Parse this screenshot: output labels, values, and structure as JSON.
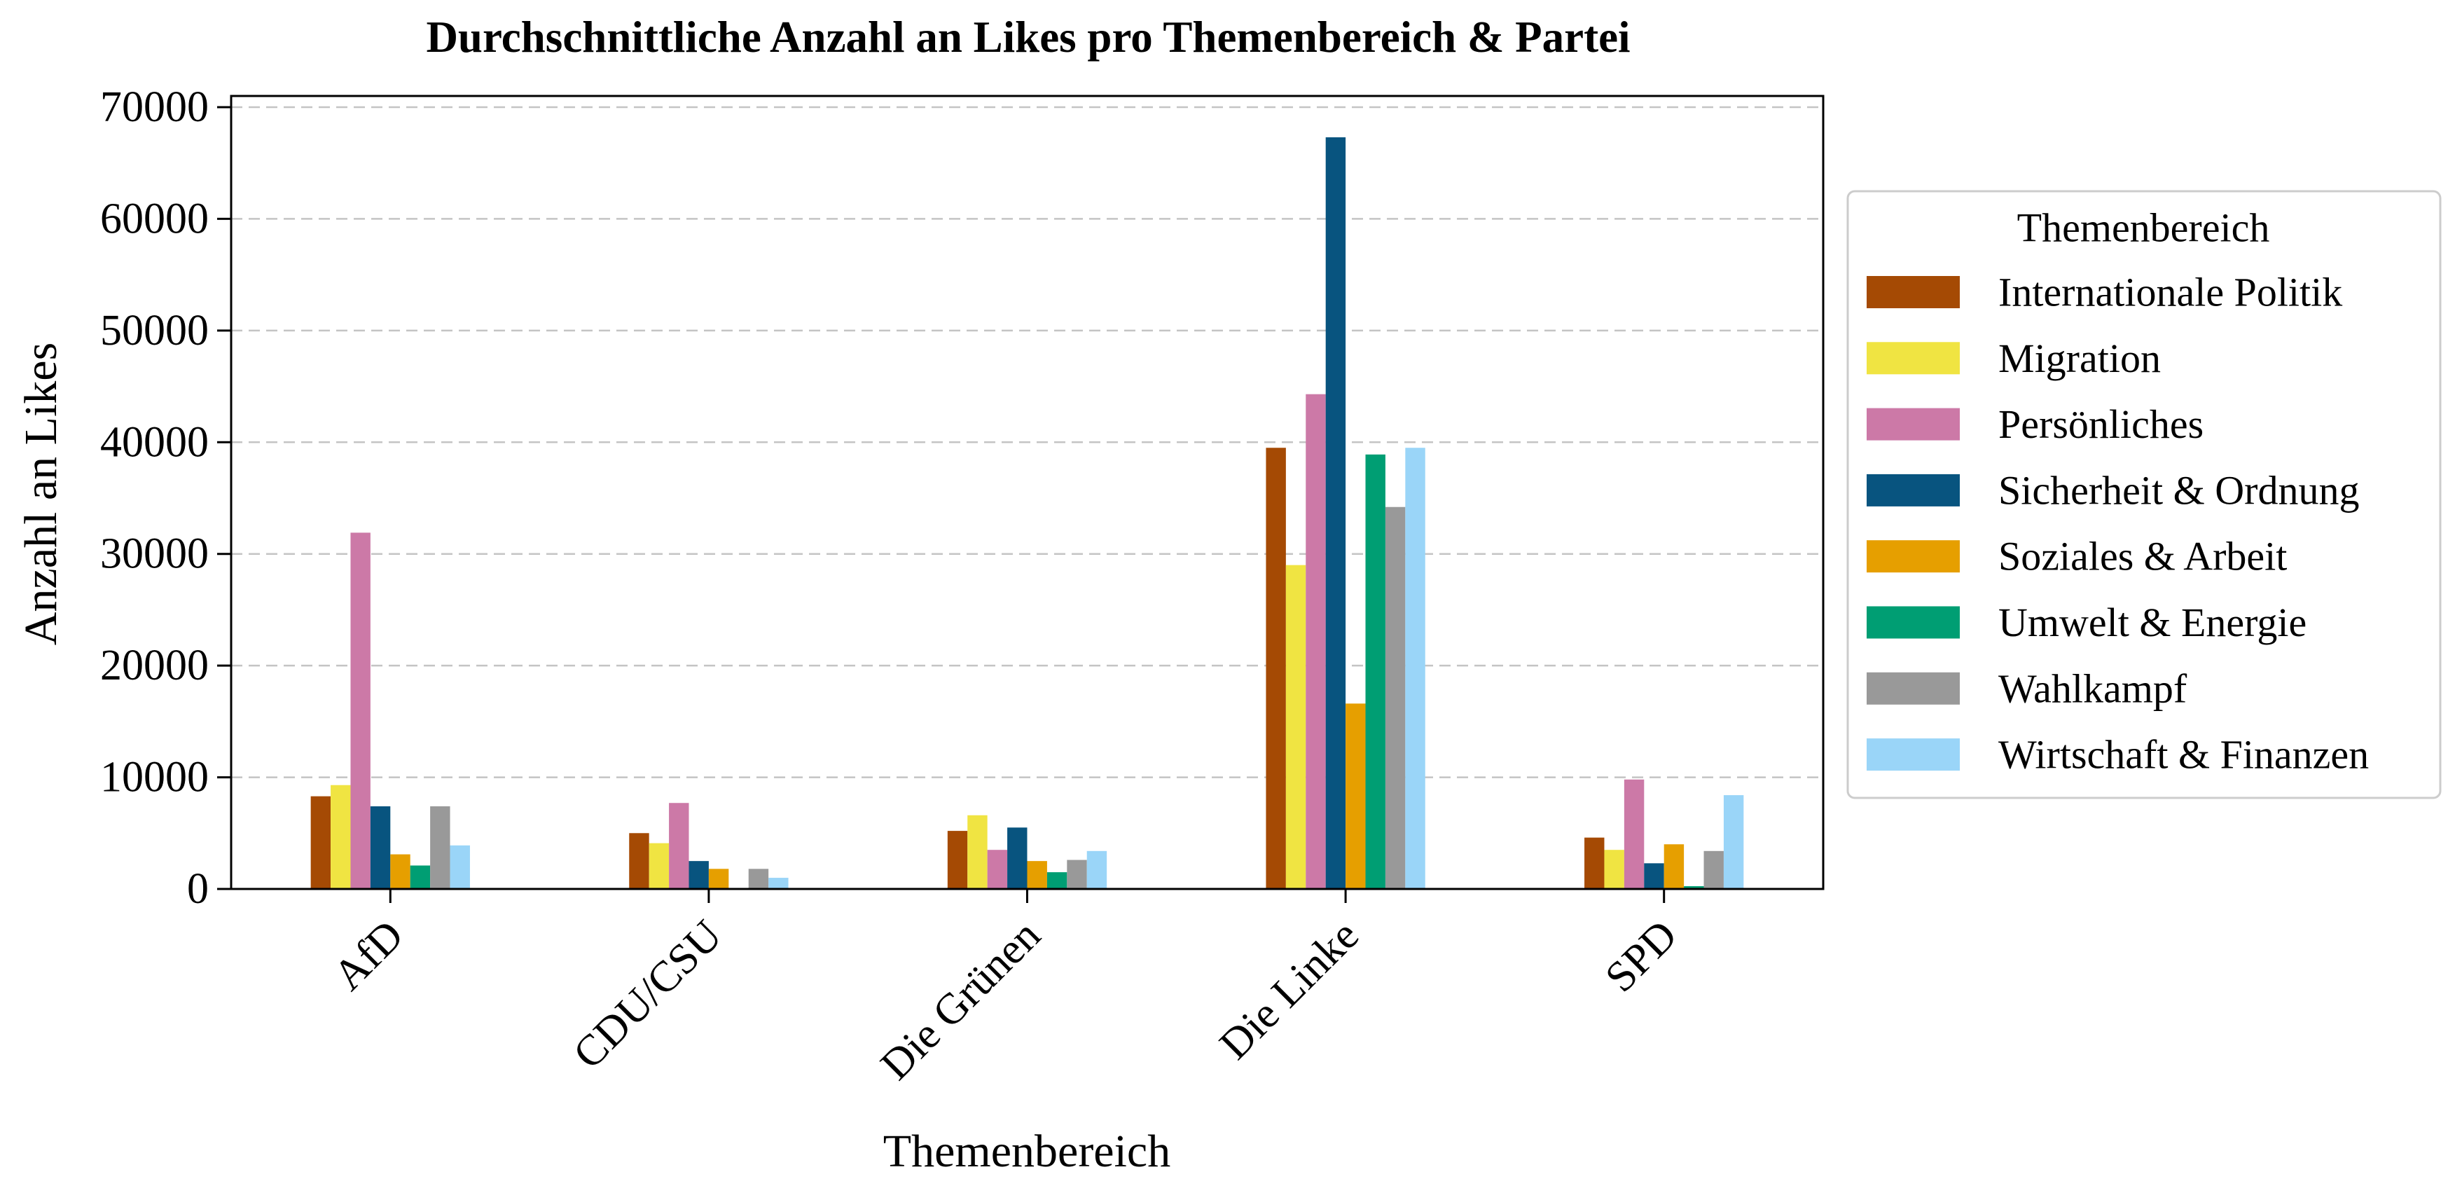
{
  "chart_data": {
    "type": "bar",
    "title": "Durchschnittliche Anzahl an Likes pro Themenbereich & Partei",
    "xlabel": "Themenbereich",
    "ylabel": "Anzahl an Likes",
    "categories": [
      "AfD",
      "CDU/CSU",
      "Die Grünen",
      "Die Linke",
      "SPD"
    ],
    "ylim": [
      0,
      71000
    ],
    "yticks": [
      0,
      10000,
      20000,
      30000,
      40000,
      50000,
      60000,
      70000
    ],
    "grid": true,
    "legend_position": "right, outside plot",
    "legend_title": "Themenbereich",
    "series": [
      {
        "name": "Internationale Politik",
        "color": "#A54A04",
        "values": [
          8300,
          5000,
          5200,
          39500,
          4600
        ]
      },
      {
        "name": "Migration",
        "color": "#F0E442",
        "values": [
          9300,
          4100,
          6600,
          29000,
          3500
        ]
      },
      {
        "name": "Persönliches",
        "color": "#CC79A7",
        "values": [
          31900,
          7700,
          3500,
          44300,
          9800
        ]
      },
      {
        "name": "Sicherheit & Ordnung",
        "color": "#08547F",
        "values": [
          7400,
          2500,
          5500,
          67300,
          2300
        ]
      },
      {
        "name": "Soziales & Arbeit",
        "color": "#E69F00",
        "values": [
          3100,
          1800,
          2500,
          16600,
          4000
        ]
      },
      {
        "name": "Umwelt & Energie",
        "color": "#009E73",
        "values": [
          2100,
          0,
          1500,
          38900,
          250
        ]
      },
      {
        "name": "Wahlkampf",
        "color": "#999999",
        "values": [
          7400,
          1800,
          2600,
          34200,
          3400
        ]
      },
      {
        "name": "Wirtschaft & Finanzen",
        "color": "#9AD5F8",
        "values": [
          3900,
          1000,
          3400,
          39500,
          8400
        ]
      }
    ]
  }
}
